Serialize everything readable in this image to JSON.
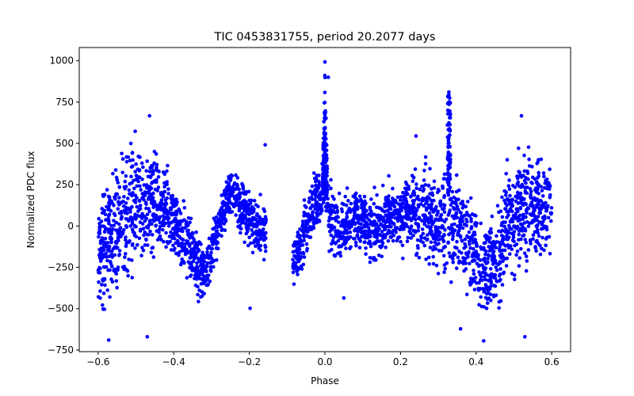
{
  "chart_data": {
    "type": "scatter",
    "title": "TIC 0453831755, period 20.2077 days",
    "xlabel": "Phase",
    "ylabel": "Normalized PDC flux",
    "xlim": [
      -0.65,
      0.65
    ],
    "ylim": [
      -760,
      1080
    ],
    "xticks": [
      -0.6,
      -0.4,
      -0.2,
      0.0,
      0.2,
      0.4,
      0.6
    ],
    "xtick_labels": [
      "−0.6",
      "−0.4",
      "−0.2",
      "0.0",
      "0.2",
      "0.4",
      "0.6"
    ],
    "yticks": [
      -750,
      -500,
      -250,
      0,
      250,
      500,
      750,
      1000
    ],
    "ytick_labels": [
      "−750",
      "−500",
      "−250",
      "0",
      "250",
      "500",
      "750",
      "1000"
    ],
    "grid": false,
    "legend": "none",
    "series_color": "#0000ff",
    "series": [
      {
        "name": "PDC flux",
        "envelope": {
          "x": [
            -0.6,
            -0.58,
            -0.56,
            -0.54,
            -0.52,
            -0.5,
            -0.48,
            -0.46,
            -0.44,
            -0.42,
            -0.4,
            -0.38,
            -0.36,
            -0.34,
            -0.32,
            -0.3,
            -0.28,
            -0.26,
            -0.24,
            -0.22,
            -0.2,
            -0.18,
            -0.16,
            -0.085,
            -0.07,
            -0.05,
            -0.03,
            -0.01,
            0.0,
            0.01,
            0.03,
            0.05,
            0.07,
            0.09,
            0.11,
            0.13,
            0.15,
            0.17,
            0.19,
            0.21,
            0.23,
            0.25,
            0.27,
            0.29,
            0.31,
            0.33,
            0.35,
            0.37,
            0.39,
            0.41,
            0.43,
            0.45,
            0.47,
            0.49,
            0.51,
            0.53,
            0.55,
            0.57,
            0.6
          ],
          "y_center": [
            -130,
            -100,
            -60,
            20,
            80,
            140,
            160,
            140,
            120,
            80,
            20,
            -50,
            -120,
            -220,
            -280,
            -150,
            0,
            150,
            200,
            120,
            50,
            -20,
            -60,
            -220,
            -150,
            0,
            120,
            180,
            300,
            60,
            10,
            0,
            40,
            40,
            0,
            -20,
            0,
            60,
            60,
            80,
            90,
            60,
            60,
            40,
            20,
            30,
            10,
            -80,
            -150,
            -200,
            -260,
            -200,
            -100,
            0,
            80,
            140,
            140,
            100,
            80
          ],
          "y_spread": [
            300,
            400,
            420,
            430,
            420,
            380,
            360,
            340,
            300,
            250,
            200,
            200,
            200,
            200,
            180,
            150,
            150,
            150,
            160,
            180,
            200,
            170,
            170,
            160,
            170,
            180,
            200,
            210,
            220,
            200,
            190,
            190,
            180,
            170,
            180,
            190,
            190,
            200,
            200,
            220,
            240,
            260,
            280,
            280,
            280,
            280,
            280,
            280,
            280,
            280,
            280,
            300,
            320,
            330,
            350,
            360,
            340,
            300,
            220
          ]
        },
        "features": [
          {
            "label": "central spike",
            "x": 0.0,
            "max_y": 993
          },
          {
            "label": "narrow peak",
            "x": 0.33,
            "max_y": 810
          },
          {
            "label": "gap",
            "x_start": -0.155,
            "x_end": -0.085
          }
        ],
        "notable_points": [
          {
            "x": -0.464,
            "y": 667
          },
          {
            "x": 0.52,
            "y": 667
          },
          {
            "x": 0.241,
            "y": 545
          },
          {
            "x": -0.572,
            "y": -690
          },
          {
            "x": 0.42,
            "y": -695
          },
          {
            "x": -0.47,
            "y": -670
          },
          {
            "x": 0.529,
            "y": -670
          },
          {
            "x": 0.359,
            "y": -622
          },
          {
            "x": -0.158,
            "y": 491
          },
          {
            "x": -0.198,
            "y": -498
          },
          {
            "x": 0.009,
            "y": 900
          },
          {
            "x": 0.0,
            "y": 993
          },
          {
            "x": 0.328,
            "y": 810
          },
          {
            "x": 0.05,
            "y": -435
          }
        ]
      }
    ]
  }
}
